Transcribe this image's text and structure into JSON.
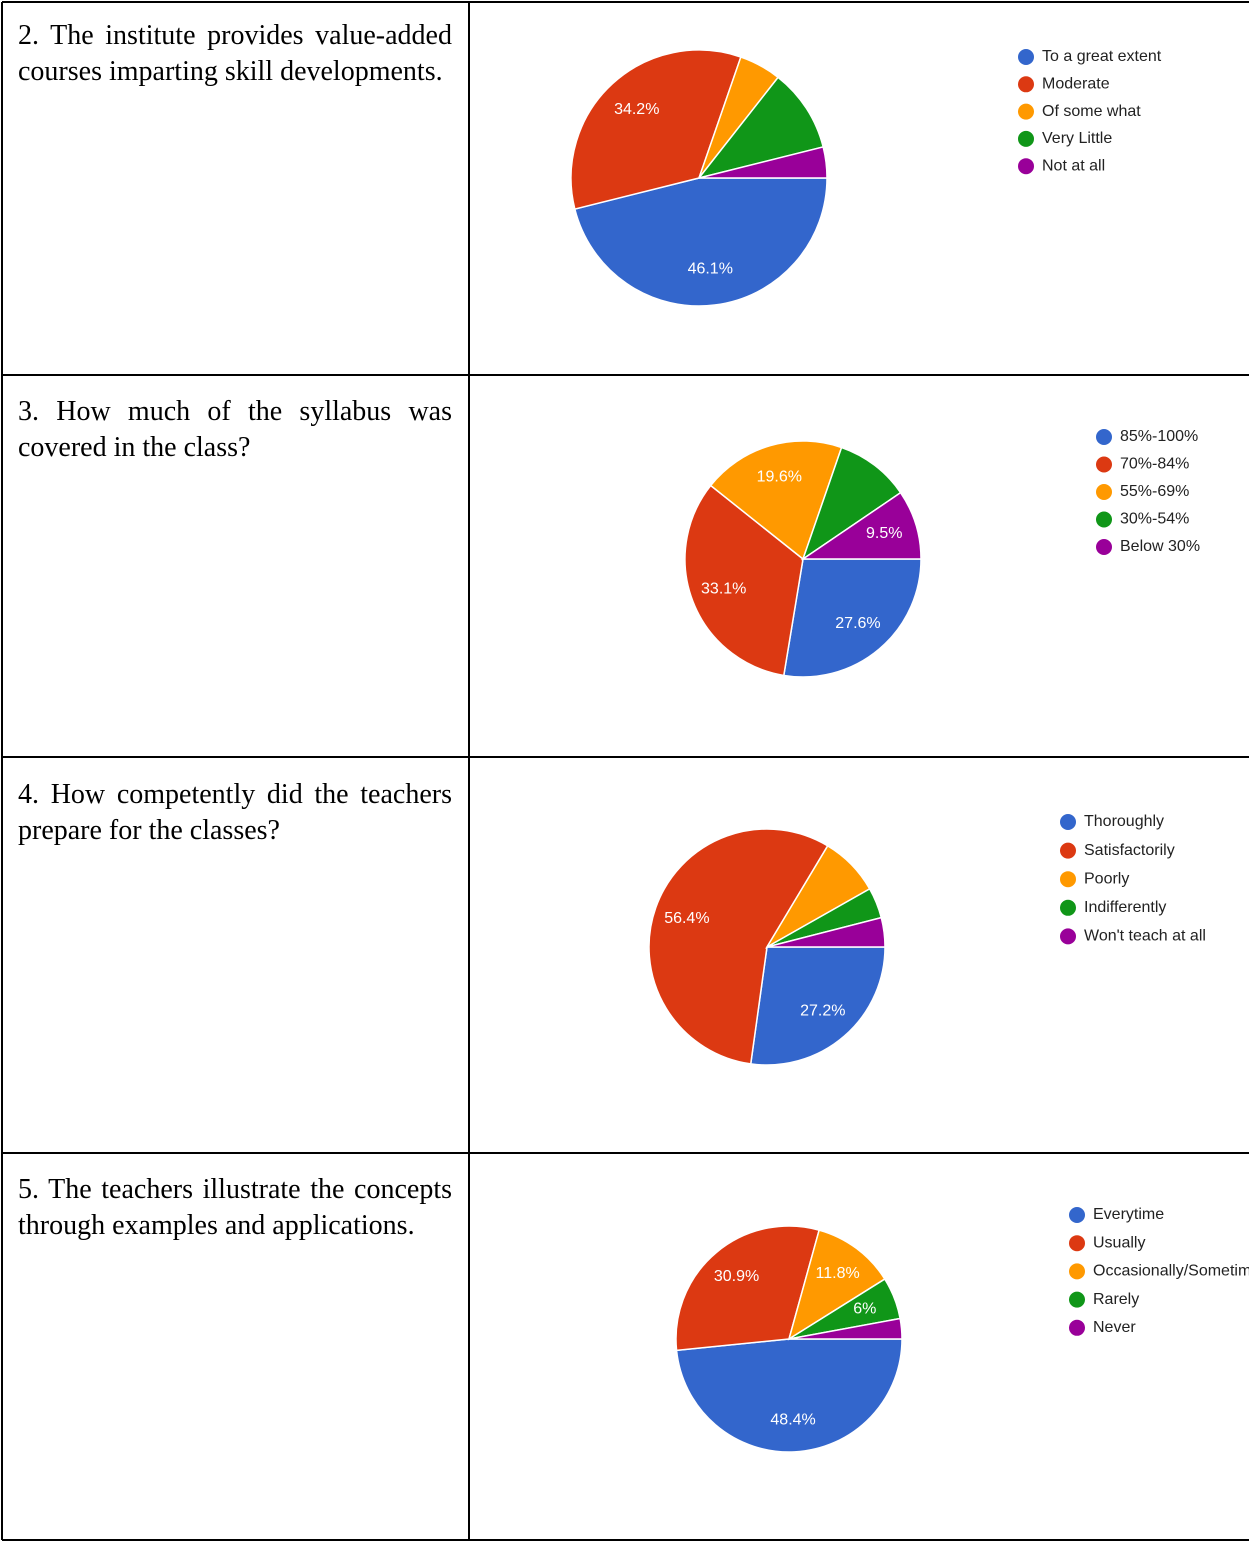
{
  "rows": [
    {
      "question": "2. The institute provides value-added courses imparting skill developments.",
      "chart_data": {
        "type": "pie",
        "categories": [
          "To a great extent",
          "Moderate",
          "Of some what",
          "Very Little",
          "Not at all"
        ],
        "values": [
          46.1,
          34.2,
          5.3,
          10.5,
          3.9
        ],
        "value_labels": [
          "46.1%",
          "34.2%",
          null,
          null,
          null
        ],
        "colors": [
          "#3366cc",
          "#dc3912",
          "#ff9900",
          "#109618",
          "#990099"
        ]
      }
    },
    {
      "question": "3. How much of the syllabus was covered in the class?",
      "chart_data": {
        "type": "pie",
        "categories": [
          "85%-100%",
          "70%-84%",
          "55%-69%",
          "30%-54%",
          "Below 30%"
        ],
        "values": [
          27.6,
          33.1,
          19.6,
          10.2,
          9.5
        ],
        "value_labels": [
          "27.6%",
          "33.1%",
          "19.6%",
          null,
          "9.5%"
        ],
        "colors": [
          "#3366cc",
          "#dc3912",
          "#ff9900",
          "#109618",
          "#990099"
        ]
      }
    },
    {
      "question": "4. How competently did the teachers prepare for the classes?",
      "chart_data": {
        "type": "pie",
        "categories": [
          "Thoroughly",
          "Satisfactorily",
          "Poorly",
          "Indifferently",
          "Won't teach at all"
        ],
        "values": [
          27.2,
          56.4,
          8.2,
          4.2,
          4.0
        ],
        "value_labels": [
          "27.2%",
          "56.4%",
          null,
          null,
          null
        ],
        "colors": [
          "#3366cc",
          "#dc3912",
          "#ff9900",
          "#109618",
          "#990099"
        ]
      }
    },
    {
      "question": "5. The teachers illustrate the concepts through examples and applications.",
      "chart_data": {
        "type": "pie",
        "categories": [
          "Everytime",
          "Usually",
          "Occasionally/Sometimes",
          "Rarely",
          "Never"
        ],
        "values": [
          48.4,
          30.9,
          11.8,
          6,
          2.9
        ],
        "value_labels": [
          "48.4%",
          "30.9%",
          "11.8%",
          "6%",
          null
        ],
        "colors": [
          "#3366cc",
          "#dc3912",
          "#ff9900",
          "#109618",
          "#990099"
        ]
      }
    }
  ]
}
